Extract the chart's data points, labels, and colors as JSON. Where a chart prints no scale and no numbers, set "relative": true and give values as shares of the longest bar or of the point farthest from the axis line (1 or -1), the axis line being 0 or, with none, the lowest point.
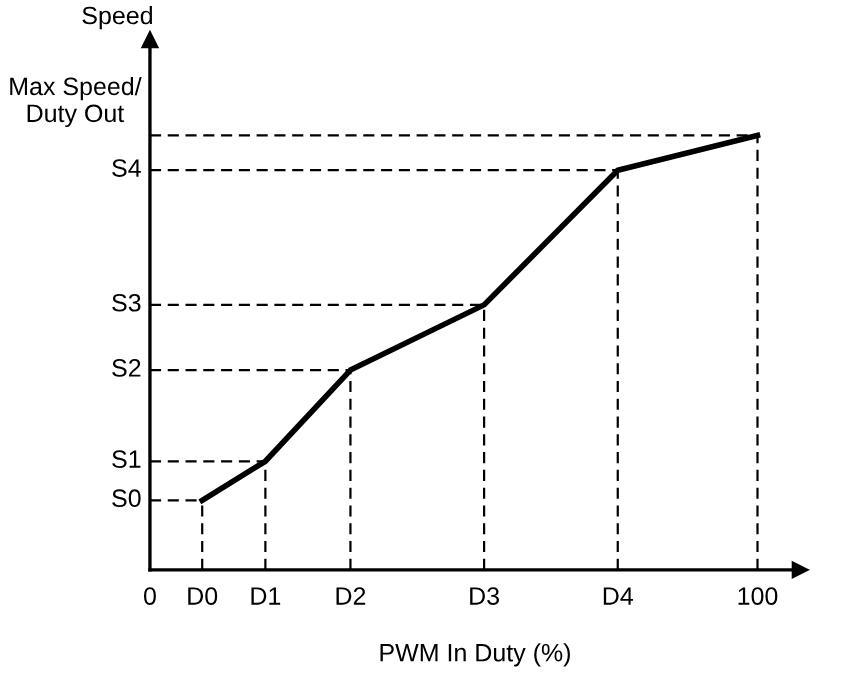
{
  "chart_data": {
    "type": "line",
    "relative": true,
    "xlabel": "PWM In Duty (%)",
    "ylabel": "Speed",
    "x": [
      8.6,
      19,
      33,
      55,
      77,
      100
    ],
    "series": [
      {
        "color": "#000000",
        "values": [
          0.16,
          0.25,
          0.46,
          0.61,
          0.92,
          1
        ]
      }
    ],
    "xlim": [
      0,
      107
    ],
    "xticks": [
      0,
      {
        "value": 8.6,
        "label": "D0"
      },
      {
        "value": 19,
        "label": "D1"
      },
      {
        "value": 33,
        "label": "D2"
      },
      {
        "value": 55,
        "label": "D3"
      },
      {
        "value": 77,
        "label": "D4"
      },
      100
    ],
    "ylim": [
      0,
      1.22
    ],
    "ref_lines": [
      {
        "axis": "y",
        "value": 0.16,
        "label": "S0",
        "line_style": "dashed"
      },
      {
        "axis": "y",
        "value": 0.25,
        "label": "S1",
        "line_style": "dashed"
      },
      {
        "axis": "y",
        "value": 0.46,
        "label": "S2",
        "line_style": "dashed"
      },
      {
        "axis": "y",
        "value": 0.61,
        "label": "S3",
        "line_style": "dashed"
      },
      {
        "axis": "y",
        "value": 0.92,
        "label": "S4",
        "line_style": "dashed"
      },
      {
        "axis": "y",
        "value": 1,
        "label": "Max Speed/\nDuty Out",
        "line_style": "dashed"
      },
      {
        "axis": "x",
        "value": 8.6,
        "line_style": "dashed"
      },
      {
        "axis": "x",
        "value": 19,
        "line_style": "dashed"
      },
      {
        "axis": "x",
        "value": 33,
        "line_style": "dashed"
      },
      {
        "axis": "x",
        "value": 55,
        "line_style": "dashed"
      },
      {
        "axis": "x",
        "value": 77,
        "line_style": "dashed"
      },
      {
        "axis": "x",
        "value": 100,
        "line_style": "dashed"
      }
    ],
    "grid": false,
    "marker": "none",
    "line_style": "solid"
  }
}
